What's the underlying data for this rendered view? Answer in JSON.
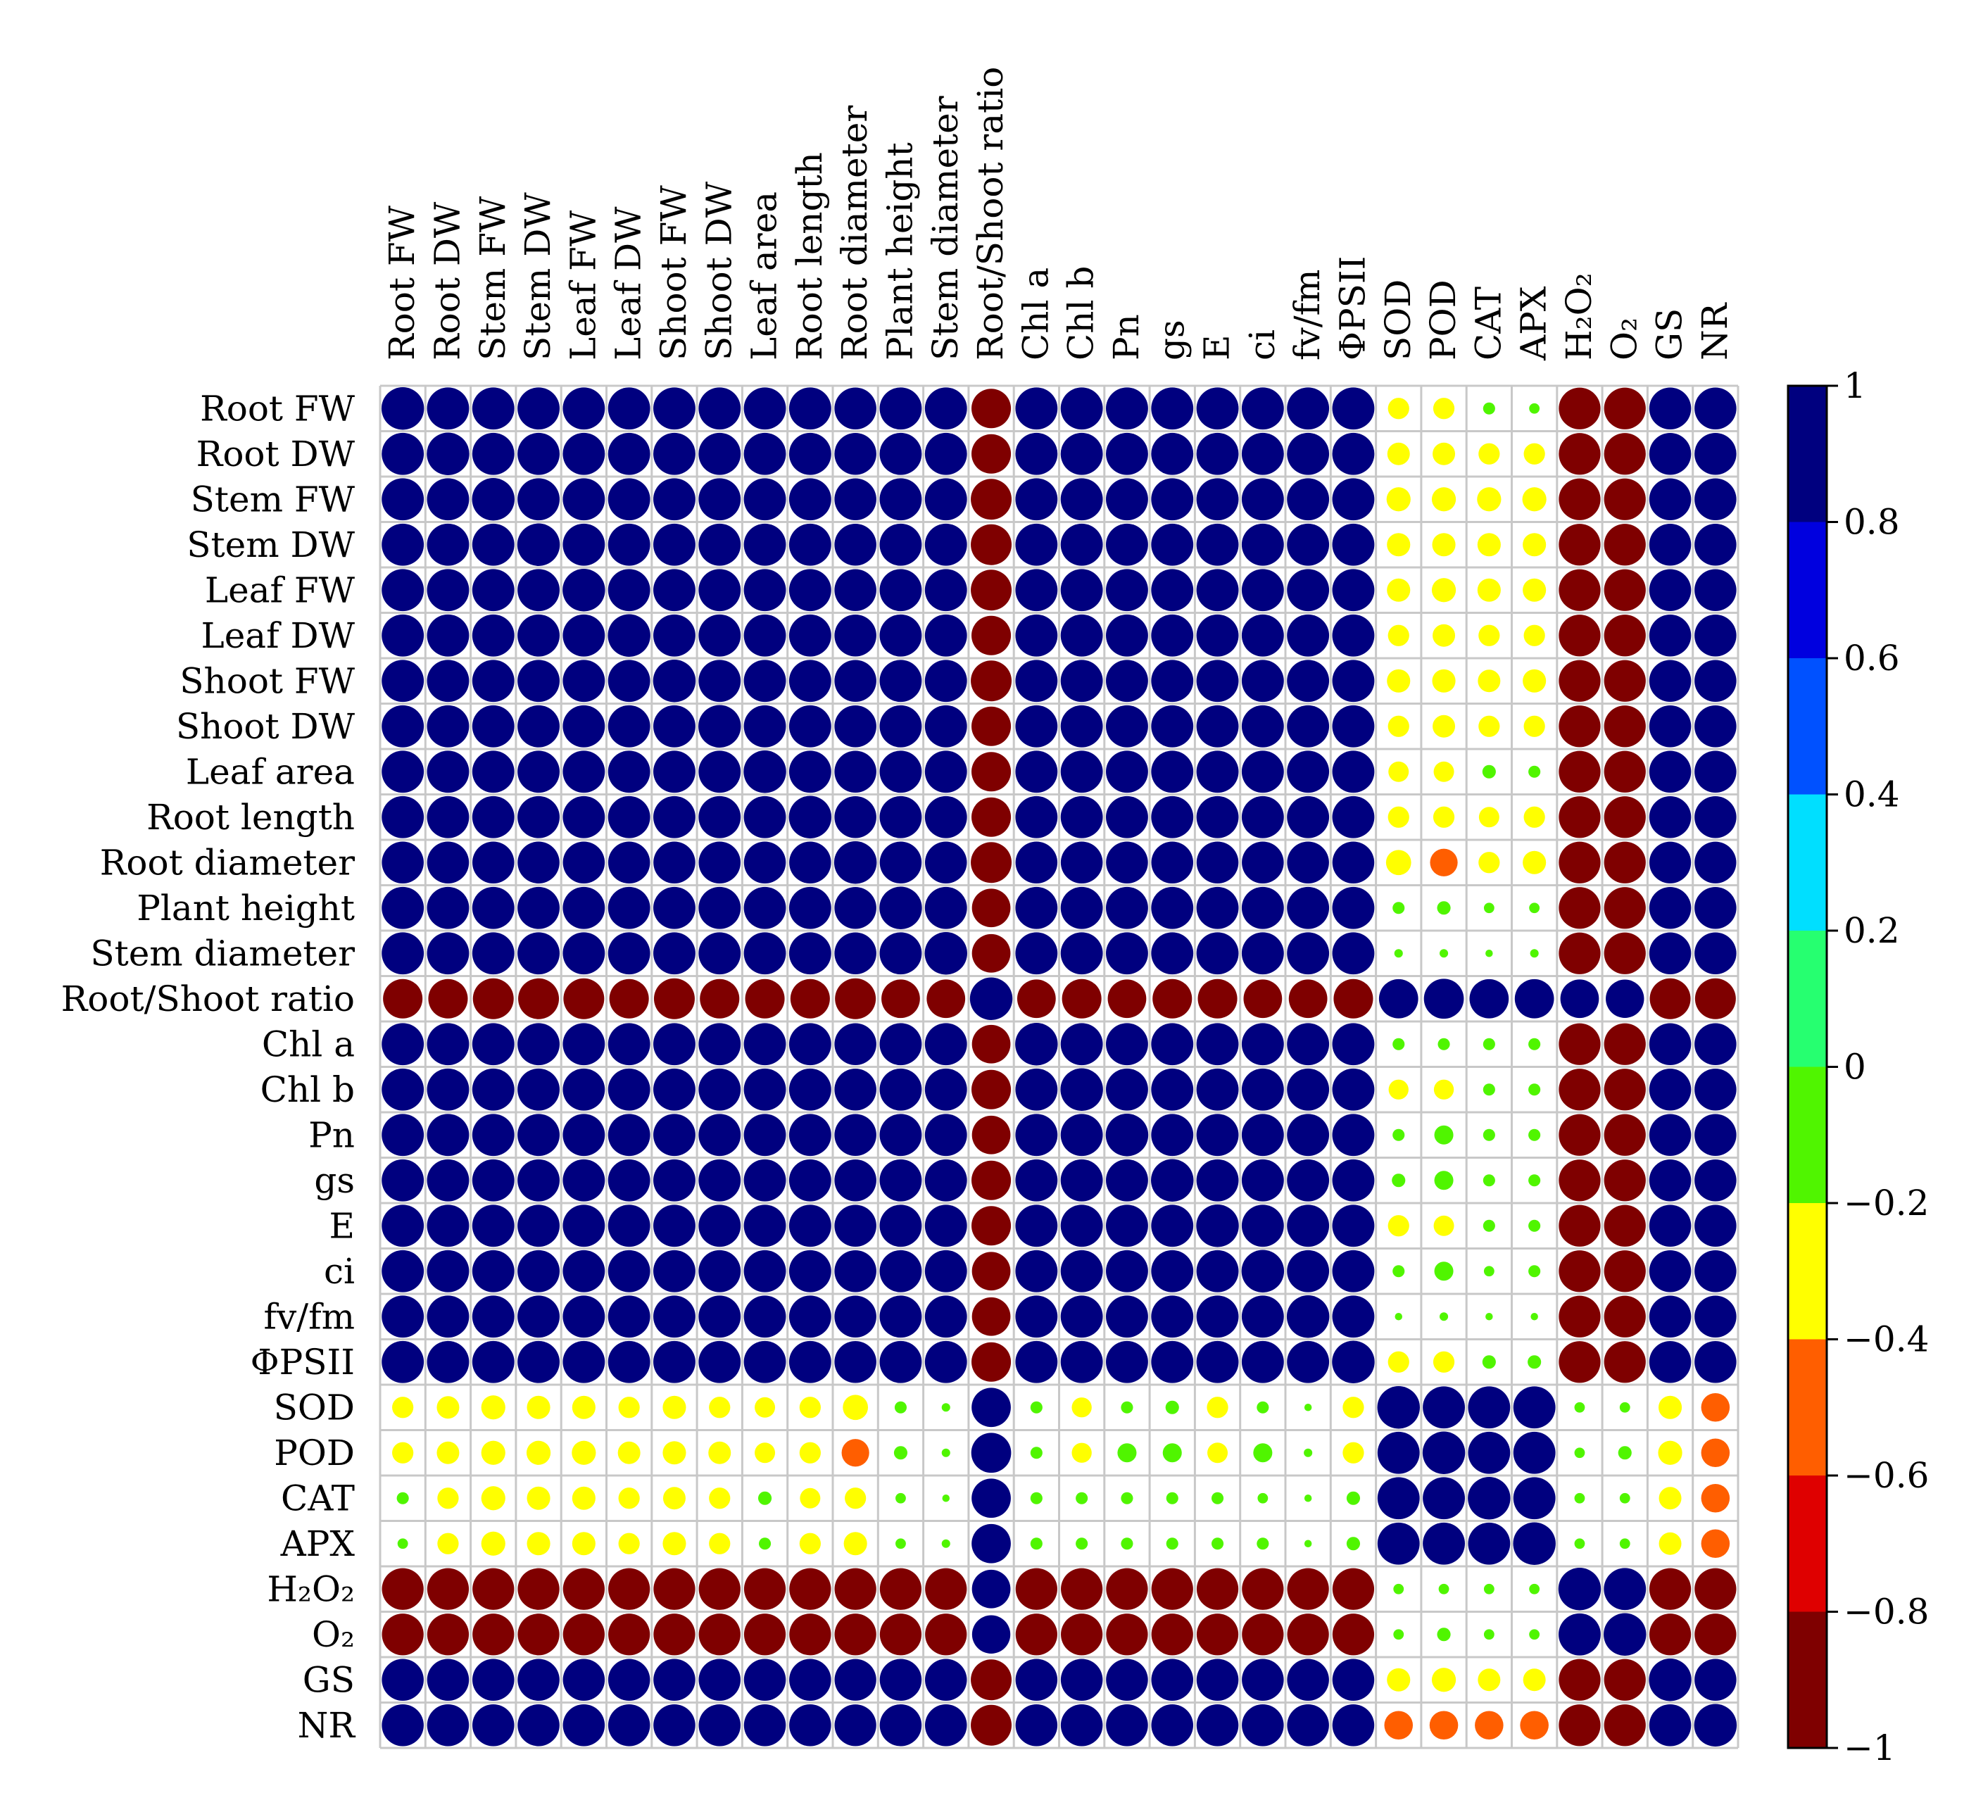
{
  "chart_data": {
    "type": "heatmap",
    "title": "",
    "variables": [
      "Root FW",
      "Root DW",
      "Stem FW",
      "Stem DW",
      "Leaf FW",
      "Leaf DW",
      "Shoot FW",
      "Shoot DW",
      "Leaf area",
      "Root length",
      "Root diameter",
      "Plant height",
      "Stem diameter",
      "Root/Shoot ratio",
      "Chl a",
      "Chl b",
      "Pn",
      "gs",
      "E",
      "ci",
      "fv/fm",
      "ΦPSII",
      "SOD",
      "POD",
      "CAT",
      "APX",
      "H2O2",
      "O2",
      "GS",
      "NR"
    ],
    "labels_display": [
      "Root FW",
      "Root DW",
      "Stem FW",
      "Stem DW",
      "Leaf FW",
      "Leaf DW",
      "Shoot FW",
      "Shoot DW",
      "Leaf area",
      "Root length",
      "Root diameter",
      "Plant height",
      "Stem diameter",
      "Root/Shoot ratio",
      "Chl a",
      "Chl b",
      "Pn",
      "gs",
      "E",
      "ci",
      "fv/fm",
      "ΦPSII",
      "SOD",
      "POD",
      "CAT",
      "APX",
      "H₂O₂",
      "O₂",
      "GS",
      "NR"
    ],
    "color_scale": {
      "min": -1,
      "max": 1,
      "ticks": [
        1,
        0.8,
        0.6,
        0.4,
        0.2,
        0,
        -0.2,
        -0.4,
        -0.6,
        -0.8,
        -1
      ],
      "tick_labels": [
        "1",
        "0.8",
        "0.6",
        "0.4",
        "0.2",
        "0",
        "−0.2",
        "−0.4",
        "−0.6",
        "−0.8",
        "−1"
      ],
      "bands_top_to_bottom": [
        "#00007f",
        "#0000df",
        "#0051ff",
        "#00dfff",
        "#26ff70",
        "#50f500",
        "#ffff00",
        "#ff5e00",
        "#df0000",
        "#7f0000"
      ]
    },
    "correlation_matrix": [
      [
        1.0,
        0.98,
        0.98,
        0.98,
        0.98,
        0.98,
        0.98,
        0.98,
        0.98,
        0.98,
        0.97,
        0.98,
        0.98,
        -0.86,
        0.98,
        0.98,
        0.98,
        0.98,
        0.98,
        0.98,
        0.98,
        0.98,
        -0.25,
        -0.25,
        -0.08,
        -0.06,
        -0.96,
        -0.96,
        0.97,
        0.97
      ],
      [
        0.98,
        1.0,
        0.98,
        0.98,
        0.98,
        0.98,
        0.98,
        0.98,
        0.98,
        0.98,
        0.97,
        0.98,
        0.98,
        -0.86,
        0.98,
        0.98,
        0.98,
        0.98,
        0.98,
        0.98,
        0.98,
        0.98,
        -0.28,
        -0.28,
        -0.25,
        -0.25,
        -0.96,
        -0.96,
        0.97,
        0.97
      ],
      [
        0.98,
        0.98,
        1.0,
        0.98,
        0.98,
        0.98,
        0.98,
        0.98,
        0.98,
        0.98,
        0.97,
        0.98,
        0.98,
        -0.92,
        0.98,
        0.98,
        0.98,
        0.98,
        0.98,
        0.98,
        0.98,
        0.98,
        -0.32,
        -0.32,
        -0.32,
        -0.32,
        -0.96,
        -0.96,
        0.97,
        0.97
      ],
      [
        0.98,
        0.98,
        0.98,
        1.0,
        0.98,
        0.98,
        0.98,
        0.98,
        0.98,
        0.98,
        0.97,
        0.98,
        0.98,
        -0.92,
        0.98,
        0.98,
        0.98,
        0.98,
        0.98,
        0.98,
        0.98,
        0.98,
        -0.3,
        -0.3,
        -0.3,
        -0.3,
        -0.96,
        -0.96,
        0.97,
        0.97
      ],
      [
        0.98,
        0.98,
        0.98,
        0.98,
        1.0,
        0.98,
        0.98,
        0.98,
        0.98,
        0.98,
        0.97,
        0.98,
        0.98,
        -0.92,
        0.98,
        0.98,
        0.98,
        0.98,
        0.98,
        0.98,
        0.98,
        0.98,
        -0.3,
        -0.32,
        -0.3,
        -0.3,
        -0.96,
        -0.96,
        0.97,
        0.97
      ],
      [
        0.98,
        0.98,
        0.98,
        0.98,
        0.98,
        1.0,
        0.98,
        0.98,
        0.98,
        0.98,
        0.97,
        0.98,
        0.98,
        -0.86,
        0.98,
        0.98,
        0.98,
        0.98,
        0.98,
        0.98,
        0.98,
        0.98,
        -0.25,
        -0.28,
        -0.25,
        -0.25,
        -0.96,
        -0.96,
        0.97,
        0.97
      ],
      [
        0.98,
        0.98,
        0.98,
        0.98,
        0.98,
        0.98,
        1.0,
        0.98,
        0.98,
        0.98,
        0.97,
        0.98,
        0.98,
        -0.92,
        0.98,
        0.98,
        0.98,
        0.98,
        0.98,
        0.98,
        0.98,
        0.98,
        -0.3,
        -0.3,
        -0.28,
        -0.3,
        -0.96,
        -0.96,
        0.97,
        0.97
      ],
      [
        0.98,
        0.98,
        0.98,
        0.98,
        0.98,
        0.98,
        0.98,
        1.0,
        0.98,
        0.98,
        0.97,
        0.98,
        0.98,
        -0.86,
        0.98,
        0.98,
        0.98,
        0.98,
        0.98,
        0.98,
        0.98,
        0.98,
        -0.25,
        -0.28,
        -0.25,
        -0.25,
        -0.96,
        -0.96,
        0.97,
        0.97
      ],
      [
        0.98,
        0.98,
        0.98,
        0.98,
        0.98,
        0.98,
        0.98,
        0.98,
        1.0,
        0.98,
        0.97,
        0.98,
        0.98,
        -0.86,
        0.98,
        0.98,
        0.98,
        0.98,
        0.98,
        0.98,
        0.98,
        0.98,
        -0.23,
        -0.23,
        -0.1,
        -0.08,
        -0.96,
        -0.96,
        0.97,
        0.97
      ],
      [
        0.98,
        0.98,
        0.98,
        0.98,
        0.98,
        0.98,
        0.98,
        0.98,
        0.98,
        1.0,
        0.97,
        0.98,
        0.98,
        -0.86,
        0.98,
        0.98,
        0.98,
        0.98,
        0.98,
        0.98,
        0.98,
        0.98,
        -0.25,
        -0.25,
        -0.23,
        -0.25,
        -0.96,
        -0.96,
        0.97,
        0.97
      ],
      [
        0.97,
        0.97,
        0.97,
        0.97,
        0.97,
        0.97,
        0.97,
        0.97,
        0.97,
        0.97,
        1.0,
        0.97,
        0.97,
        -0.92,
        0.97,
        0.97,
        0.97,
        0.97,
        0.97,
        0.97,
        0.97,
        0.97,
        -0.35,
        -0.42,
        -0.25,
        -0.3,
        -0.96,
        -0.96,
        0.96,
        0.96
      ],
      [
        0.98,
        0.98,
        0.98,
        0.98,
        0.98,
        0.98,
        0.98,
        0.98,
        0.98,
        0.98,
        0.97,
        1.0,
        0.98,
        -0.82,
        0.98,
        0.98,
        0.98,
        0.98,
        0.98,
        0.98,
        0.98,
        0.98,
        -0.08,
        -0.1,
        -0.06,
        -0.06,
        -0.96,
        -0.96,
        0.97,
        0.97
      ],
      [
        0.98,
        0.98,
        0.98,
        0.98,
        0.98,
        0.98,
        0.98,
        0.98,
        0.98,
        0.98,
        0.97,
        0.98,
        1.0,
        -0.82,
        0.98,
        0.98,
        0.98,
        0.98,
        0.98,
        0.98,
        0.98,
        0.98,
        -0.04,
        -0.04,
        -0.03,
        -0.04,
        -0.96,
        -0.96,
        0.97,
        0.97
      ],
      [
        -0.86,
        -0.86,
        -0.92,
        -0.92,
        -0.92,
        -0.86,
        -0.92,
        -0.86,
        -0.86,
        -0.86,
        -0.92,
        -0.82,
        -0.82,
        1.0,
        -0.82,
        -0.86,
        -0.82,
        -0.86,
        -0.86,
        -0.82,
        -0.82,
        -0.86,
        0.85,
        0.88,
        0.85,
        0.85,
        0.82,
        0.81,
        -0.92,
        -0.92
      ],
      [
        0.98,
        0.98,
        0.98,
        0.98,
        0.98,
        0.98,
        0.98,
        0.98,
        0.98,
        0.98,
        0.97,
        0.98,
        0.98,
        -0.82,
        1.0,
        0.98,
        0.98,
        0.98,
        0.98,
        0.98,
        0.98,
        0.98,
        -0.08,
        -0.08,
        -0.08,
        -0.08,
        -0.96,
        -0.96,
        0.97,
        0.97
      ],
      [
        0.98,
        0.98,
        0.98,
        0.98,
        0.98,
        0.98,
        0.98,
        0.98,
        0.98,
        0.98,
        0.97,
        0.98,
        0.98,
        -0.86,
        0.98,
        1.0,
        0.98,
        0.98,
        0.98,
        0.98,
        0.98,
        0.98,
        -0.22,
        -0.22,
        -0.08,
        -0.08,
        -0.96,
        -0.96,
        0.97,
        0.97
      ],
      [
        0.98,
        0.98,
        0.98,
        0.98,
        0.98,
        0.98,
        0.98,
        0.98,
        0.98,
        0.98,
        0.97,
        0.98,
        0.98,
        -0.82,
        0.98,
        0.98,
        1.0,
        0.98,
        0.98,
        0.98,
        0.98,
        0.98,
        -0.08,
        -0.2,
        -0.08,
        -0.08,
        -0.96,
        -0.96,
        0.97,
        0.97
      ],
      [
        0.98,
        0.98,
        0.98,
        0.98,
        0.98,
        0.98,
        0.98,
        0.98,
        0.98,
        0.98,
        0.97,
        0.98,
        0.98,
        -0.86,
        0.98,
        0.98,
        0.98,
        1.0,
        0.98,
        0.98,
        0.98,
        0.98,
        -0.1,
        -0.2,
        -0.08,
        -0.08,
        -0.96,
        -0.96,
        0.97,
        0.97
      ],
      [
        0.98,
        0.98,
        0.98,
        0.98,
        0.98,
        0.98,
        0.98,
        0.98,
        0.98,
        0.98,
        0.97,
        0.98,
        0.98,
        -0.86,
        0.98,
        0.98,
        0.98,
        0.98,
        1.0,
        0.98,
        0.98,
        0.98,
        -0.25,
        -0.23,
        -0.08,
        -0.08,
        -0.96,
        -0.96,
        0.97,
        0.97
      ],
      [
        0.98,
        0.98,
        0.98,
        0.98,
        0.98,
        0.98,
        0.98,
        0.98,
        0.98,
        0.98,
        0.97,
        0.98,
        0.98,
        -0.82,
        0.98,
        0.98,
        0.98,
        0.98,
        0.98,
        1.0,
        0.98,
        0.98,
        -0.08,
        -0.2,
        -0.06,
        -0.08,
        -0.96,
        -0.96,
        0.97,
        0.97
      ],
      [
        0.98,
        0.98,
        0.98,
        0.98,
        0.98,
        0.98,
        0.98,
        0.98,
        0.98,
        0.98,
        0.97,
        0.98,
        0.98,
        -0.82,
        0.98,
        0.98,
        0.98,
        0.98,
        0.98,
        0.98,
        1.0,
        0.98,
        -0.03,
        -0.04,
        -0.03,
        -0.03,
        -0.96,
        -0.96,
        0.97,
        0.97
      ],
      [
        0.98,
        0.98,
        0.98,
        0.98,
        0.98,
        0.98,
        0.98,
        0.98,
        0.98,
        0.98,
        0.97,
        0.98,
        0.98,
        -0.86,
        0.98,
        0.98,
        0.98,
        0.98,
        0.98,
        0.98,
        0.98,
        1.0,
        -0.25,
        -0.25,
        -0.1,
        -0.1,
        -0.96,
        -0.96,
        0.97,
        0.97
      ],
      [
        -0.25,
        -0.28,
        -0.32,
        -0.3,
        -0.3,
        -0.25,
        -0.3,
        -0.25,
        -0.23,
        -0.25,
        -0.35,
        -0.08,
        -0.04,
        0.85,
        -0.08,
        -0.22,
        -0.08,
        -0.1,
        -0.25,
        -0.08,
        -0.03,
        -0.25,
        1.0,
        0.98,
        0.98,
        0.98,
        -0.06,
        -0.06,
        -0.3,
        -0.45
      ],
      [
        -0.25,
        -0.28,
        -0.32,
        -0.32,
        -0.32,
        -0.28,
        -0.3,
        -0.28,
        -0.23,
        -0.25,
        -0.42,
        -0.1,
        -0.04,
        0.88,
        -0.08,
        -0.22,
        -0.2,
        -0.2,
        -0.23,
        -0.2,
        -0.04,
        -0.25,
        0.98,
        1.0,
        0.98,
        0.98,
        -0.06,
        -0.1,
        -0.32,
        -0.45
      ],
      [
        -0.08,
        -0.25,
        -0.32,
        -0.3,
        -0.3,
        -0.25,
        -0.28,
        -0.25,
        -0.1,
        -0.23,
        -0.25,
        -0.06,
        -0.03,
        0.85,
        -0.08,
        -0.08,
        -0.08,
        -0.08,
        -0.08,
        -0.06,
        -0.03,
        -0.1,
        0.98,
        0.98,
        1.0,
        0.98,
        -0.06,
        -0.06,
        -0.28,
        -0.45
      ],
      [
        -0.06,
        -0.25,
        -0.32,
        -0.3,
        -0.3,
        -0.25,
        -0.3,
        -0.25,
        -0.08,
        -0.25,
        -0.3,
        -0.06,
        -0.04,
        0.85,
        -0.08,
        -0.08,
        -0.08,
        -0.08,
        -0.08,
        -0.08,
        -0.03,
        -0.1,
        0.98,
        0.98,
        0.98,
        1.0,
        -0.06,
        -0.06,
        -0.28,
        -0.45
      ],
      [
        -0.96,
        -0.96,
        -0.96,
        -0.96,
        -0.96,
        -0.96,
        -0.96,
        -0.96,
        -0.96,
        -0.96,
        -0.96,
        -0.96,
        -0.96,
        0.82,
        -0.96,
        -0.96,
        -0.96,
        -0.96,
        -0.96,
        -0.96,
        -0.96,
        -0.96,
        -0.06,
        -0.06,
        -0.06,
        -0.06,
        1.0,
        0.98,
        -0.96,
        -0.96
      ],
      [
        -0.96,
        -0.96,
        -0.96,
        -0.96,
        -0.96,
        -0.96,
        -0.96,
        -0.96,
        -0.96,
        -0.96,
        -0.96,
        -0.96,
        -0.96,
        0.81,
        -0.96,
        -0.96,
        -0.96,
        -0.96,
        -0.96,
        -0.96,
        -0.96,
        -0.96,
        -0.06,
        -0.1,
        -0.06,
        -0.06,
        0.98,
        1.0,
        -0.96,
        -0.96
      ],
      [
        0.97,
        0.97,
        0.97,
        0.97,
        0.97,
        0.97,
        0.97,
        0.97,
        0.97,
        0.97,
        0.96,
        0.97,
        0.97,
        -0.92,
        0.97,
        0.97,
        0.97,
        0.97,
        0.97,
        0.97,
        0.97,
        0.97,
        -0.3,
        -0.32,
        -0.28,
        -0.28,
        -0.96,
        -0.96,
        1.0,
        0.97
      ],
      [
        0.97,
        0.97,
        0.97,
        0.97,
        0.97,
        0.97,
        0.97,
        0.97,
        0.97,
        0.97,
        0.96,
        0.97,
        0.97,
        -0.92,
        0.97,
        0.97,
        0.97,
        0.97,
        0.97,
        0.97,
        0.97,
        0.97,
        -0.45,
        -0.45,
        -0.45,
        -0.45,
        -0.96,
        -0.96,
        0.97,
        1.0
      ]
    ]
  }
}
